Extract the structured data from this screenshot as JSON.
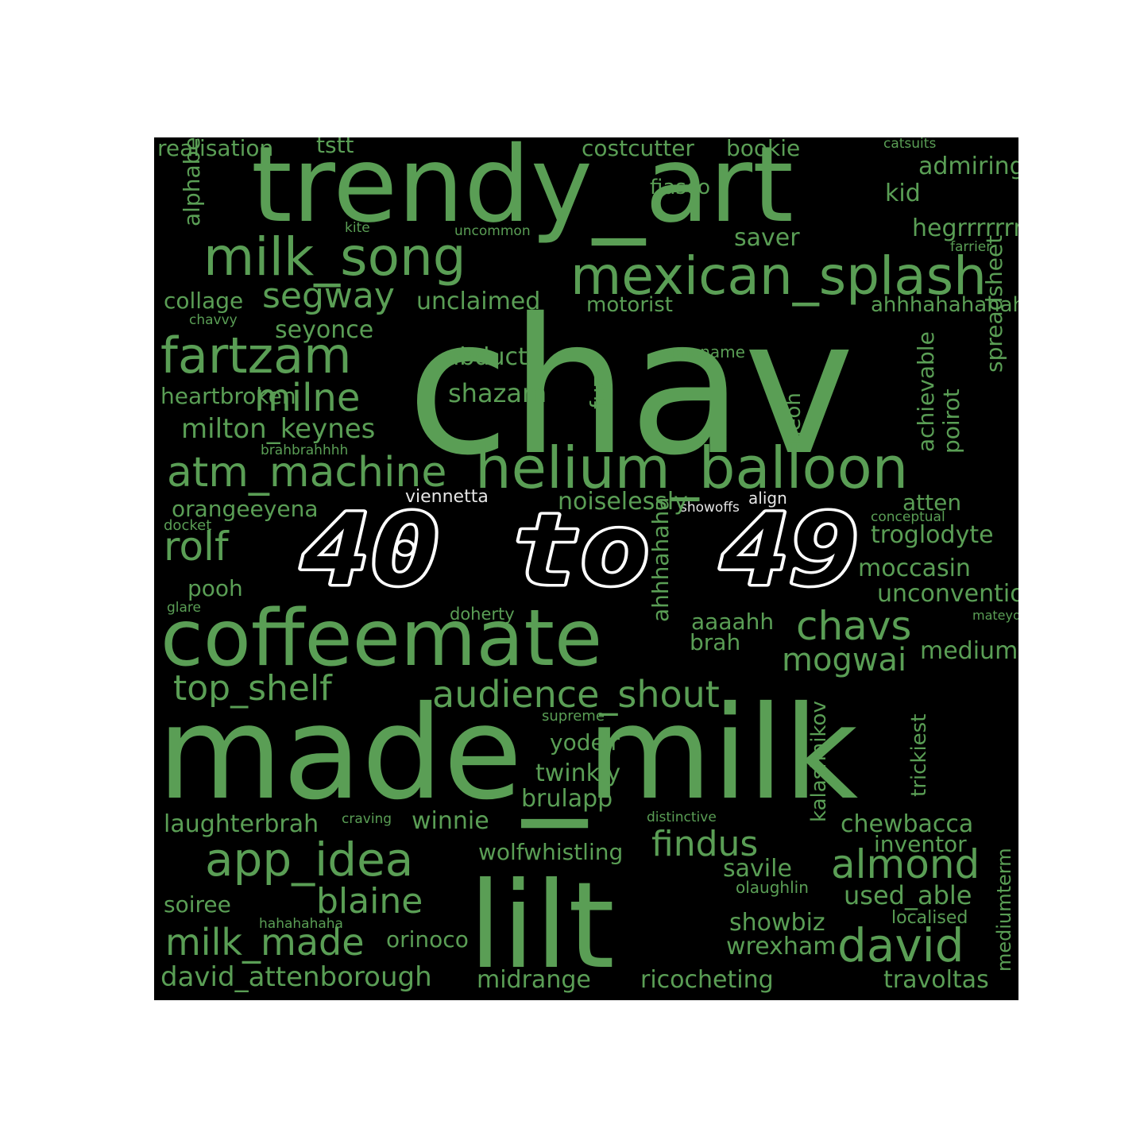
{
  "colors": {
    "background": "#000000",
    "word": "#5a9e55",
    "word_light": "#e6e6e6",
    "overlay_fill": "#000000",
    "overlay_stroke": "#ffffff"
  },
  "overlay_text": "40 to 49",
  "words": [
    "chav",
    "made_milk",
    "trendy_art",
    "lilt",
    "coffeemate",
    "helium_balloon",
    "mexican_splash",
    "milk_song",
    "fartzam",
    "atm_machine",
    "app_idea",
    "audience_shout",
    "david",
    "almond",
    "chavs",
    "milk_made",
    "blaine",
    "rolf",
    "milne",
    "segway",
    "top_shelf",
    "findus",
    "mogwai",
    "milton_keynes",
    "david_attenborough",
    "showbiz",
    "wrexham",
    "brulapp",
    "twinkly",
    "yodelr",
    "chewbacca",
    "inventor",
    "used_able",
    "savile",
    "winnie",
    "laughterbrah",
    "orinoco",
    "soiree",
    "midrange",
    "ricocheting",
    "travoltas",
    "localised",
    "olaughlin",
    "hahahahaha",
    "craving",
    "distinctive",
    "wolfwhistling",
    "kalashnikov",
    "trickiest",
    "mediumterm",
    "brah",
    "aaaahh",
    "doherty",
    "unconventional",
    "moccasin",
    "troglodyte",
    "conceptual",
    "atten",
    "mateyou",
    "supreme",
    "ahhhahaha",
    "showoffs",
    "align",
    "viennetta",
    "noiselessly",
    "docket",
    "pooh",
    "glare",
    "orangeeyena",
    "brahbrahhhh",
    "heartbroken",
    "shazam",
    "abduct",
    "onename",
    "collage",
    "chavvy",
    "seyonce",
    "unclaimed",
    "motorist",
    "ahhhahahahaha",
    "saver",
    "hegrrrrrrr",
    "farrier",
    "kid",
    "admiring",
    "fiasco",
    "kite",
    "uncommon",
    "realisation",
    "tstt",
    "costcutter",
    "bookie",
    "catsuits",
    "alphabetically",
    "fuzz",
    "heoh",
    "achievable",
    "poirot",
    "spreadsheet",
    "inhi"
  ]
}
